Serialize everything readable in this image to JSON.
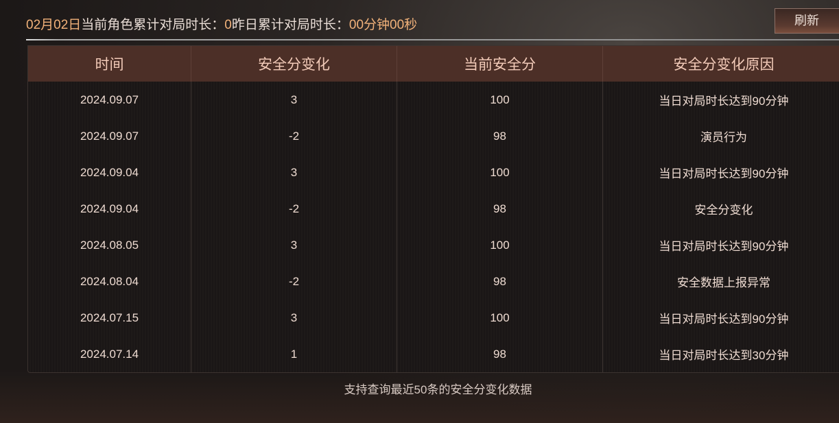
{
  "header": {
    "date": "02月02日",
    "current_label": "当前角色累计对局时长：",
    "current_value": "0",
    "yesterday_label": "昨日累计对局时长：",
    "yesterday_value": "00分钟00秒",
    "refresh_label": "刷新"
  },
  "table": {
    "columns": [
      "时间",
      "安全分变化",
      "当前安全分",
      "安全分变化原因"
    ],
    "rows": [
      [
        "2024.09.07",
        "3",
        "100",
        "当日对局时长达到90分钟"
      ],
      [
        "2024.09.07",
        "-2",
        "98",
        "演员行为"
      ],
      [
        "2024.09.04",
        "3",
        "100",
        "当日对局时长达到90分钟"
      ],
      [
        "2024.09.04",
        "-2",
        "98",
        "安全分变化"
      ],
      [
        "2024.08.05",
        "3",
        "100",
        "当日对局时长达到90分钟"
      ],
      [
        "2024.08.04",
        "-2",
        "98",
        "安全数据上报异常"
      ],
      [
        "2024.07.15",
        "3",
        "100",
        "当日对局时长达到90分钟"
      ],
      [
        "2024.07.14",
        "1",
        "98",
        "当日对局时长达到30分钟"
      ]
    ]
  },
  "footer_note": "支持查询最近50条的安全分变化数据",
  "colors": {
    "accent": "#f2b27a",
    "header_bg": "#4c2f27"
  }
}
